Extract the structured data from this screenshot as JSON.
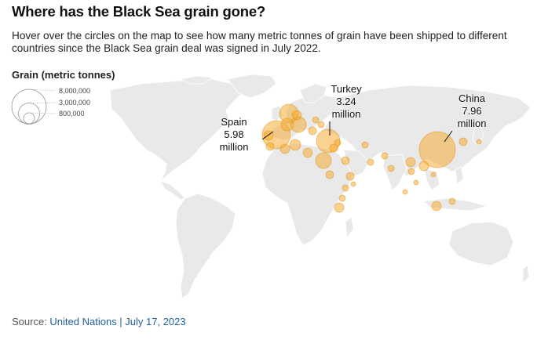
{
  "title": "Where has the Black Sea grain gone?",
  "subtitle": "Hover over the circles on the map to see how many metric tonnes of grain have been shipped to different countries since the Black Sea grain deal was signed in July 2022.",
  "legend": {
    "title": "Grain (metric tonnes)",
    "items": [
      "8,000,000",
      "3,000,000",
      "800,000"
    ]
  },
  "callouts": {
    "spain": {
      "name": "Spain",
      "value": "5.98",
      "unit": "million"
    },
    "turkey": {
      "name": "Turkey",
      "value": "3.24",
      "unit": "million"
    },
    "china": {
      "name": "China",
      "value": "7.96",
      "unit": "million"
    }
  },
  "source": {
    "prefix": "Source: ",
    "link_text": "United Nations | July 17, 2023"
  },
  "colors": {
    "bubble_fill": "#f5a623",
    "bubble_stroke": "#e08a00",
    "land": "#e9e9e9",
    "borders": "#ffffff"
  }
}
